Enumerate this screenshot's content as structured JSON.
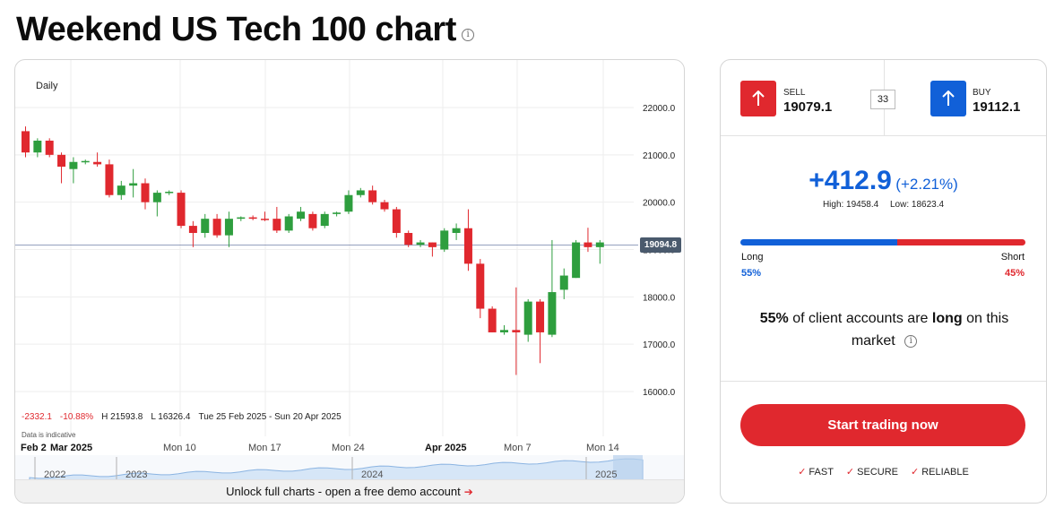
{
  "header": {
    "title": "Weekend US Tech 100 chart",
    "info_icon": "info-icon"
  },
  "chart": {
    "periodicity": "Daily",
    "current_price_tag": "19094.8",
    "stats": {
      "change": "-2332.1",
      "change_pct": "-10.88%",
      "high": "H 21593.8",
      "low": "L 16326.4",
      "range": "Tue 25 Feb 2025 - Sun 20 Apr 2025"
    },
    "indicative_note": "Data is indicative",
    "unlock_text": "Unlock full charts - open a free demo account",
    "unlock_arrow_icon": "arrow-right-icon",
    "navigator_years": [
      "2022",
      "2023",
      "2024",
      "2025"
    ]
  },
  "chart_data": {
    "type": "candlestick",
    "ylim": [
      15800,
      22800
    ],
    "y_ticks": [
      "22000.0",
      "21000.0",
      "20000.0",
      "19000.0",
      "18000.0",
      "17000.0",
      "16000.0"
    ],
    "x_ticks": [
      "Feb 2",
      "Mar 2025",
      "Mon 10",
      "Mon 17",
      "Mon 24",
      "Apr 2025",
      "Mon 7",
      "Mon 14"
    ],
    "current_price": 19094.8,
    "candles": [
      {
        "o": 21500,
        "h": 21600,
        "l": 20950,
        "c": 21050
      },
      {
        "o": 21050,
        "h": 21350,
        "l": 20950,
        "c": 21300
      },
      {
        "o": 21300,
        "h": 21350,
        "l": 20950,
        "c": 21000
      },
      {
        "o": 21000,
        "h": 21050,
        "l": 20400,
        "c": 20750
      },
      {
        "o": 20700,
        "h": 20950,
        "l": 20400,
        "c": 20850
      },
      {
        "o": 20850,
        "h": 20900,
        "l": 20800,
        "c": 20870
      },
      {
        "o": 20850,
        "h": 21050,
        "l": 20750,
        "c": 20800
      },
      {
        "o": 20800,
        "h": 20900,
        "l": 20100,
        "c": 20150
      },
      {
        "o": 20150,
        "h": 20450,
        "l": 20050,
        "c": 20350
      },
      {
        "o": 20350,
        "h": 20700,
        "l": 20100,
        "c": 20400
      },
      {
        "o": 20400,
        "h": 20500,
        "l": 19850,
        "c": 20000
      },
      {
        "o": 20000,
        "h": 20250,
        "l": 19700,
        "c": 20200
      },
      {
        "o": 20200,
        "h": 20250,
        "l": 20150,
        "c": 20220
      },
      {
        "o": 20200,
        "h": 20250,
        "l": 19450,
        "c": 19500
      },
      {
        "o": 19500,
        "h": 19600,
        "l": 19050,
        "c": 19350
      },
      {
        "o": 19350,
        "h": 19750,
        "l": 19250,
        "c": 19650
      },
      {
        "o": 19650,
        "h": 19750,
        "l": 19250,
        "c": 19300
      },
      {
        "o": 19300,
        "h": 19800,
        "l": 19050,
        "c": 19650
      },
      {
        "o": 19650,
        "h": 19700,
        "l": 19600,
        "c": 19680
      },
      {
        "o": 19680,
        "h": 19720,
        "l": 19620,
        "c": 19650
      },
      {
        "o": 19650,
        "h": 19800,
        "l": 19600,
        "c": 19630
      },
      {
        "o": 19650,
        "h": 19900,
        "l": 19350,
        "c": 19400
      },
      {
        "o": 19400,
        "h": 19750,
        "l": 19350,
        "c": 19700
      },
      {
        "o": 19650,
        "h": 19900,
        "l": 19600,
        "c": 19800
      },
      {
        "o": 19750,
        "h": 19800,
        "l": 19400,
        "c": 19450
      },
      {
        "o": 19500,
        "h": 19800,
        "l": 19450,
        "c": 19750
      },
      {
        "o": 19750,
        "h": 19800,
        "l": 19700,
        "c": 19780
      },
      {
        "o": 19800,
        "h": 20250,
        "l": 19750,
        "c": 20150
      },
      {
        "o": 20150,
        "h": 20300,
        "l": 20100,
        "c": 20250
      },
      {
        "o": 20250,
        "h": 20350,
        "l": 19950,
        "c": 20000
      },
      {
        "o": 20000,
        "h": 20050,
        "l": 19800,
        "c": 19850
      },
      {
        "o": 19850,
        "h": 19900,
        "l": 19250,
        "c": 19350
      },
      {
        "o": 19350,
        "h": 19400,
        "l": 19050,
        "c": 19100
      },
      {
        "o": 19100,
        "h": 19200,
        "l": 19050,
        "c": 19150
      },
      {
        "o": 19150,
        "h": 19150,
        "l": 18850,
        "c": 19050
      },
      {
        "o": 19000,
        "h": 19450,
        "l": 18950,
        "c": 19400
      },
      {
        "o": 19350,
        "h": 19550,
        "l": 19200,
        "c": 19450
      },
      {
        "o": 19450,
        "h": 19850,
        "l": 18550,
        "c": 18700
      },
      {
        "o": 18700,
        "h": 18800,
        "l": 17550,
        "c": 17750
      },
      {
        "o": 17750,
        "h": 17800,
        "l": 17250,
        "c": 17250
      },
      {
        "o": 17250,
        "h": 17400,
        "l": 17200,
        "c": 17300
      },
      {
        "o": 17300,
        "h": 18200,
        "l": 16350,
        "c": 17250
      },
      {
        "o": 17200,
        "h": 17950,
        "l": 17050,
        "c": 17900
      },
      {
        "o": 17900,
        "h": 17950,
        "l": 16600,
        "c": 17250
      },
      {
        "o": 17200,
        "h": 19200,
        "l": 17150,
        "c": 18100
      },
      {
        "o": 18150,
        "h": 18600,
        "l": 17950,
        "c": 18450
      },
      {
        "o": 18400,
        "h": 19200,
        "l": 18400,
        "c": 19150
      },
      {
        "o": 19150,
        "h": 19460,
        "l": 18950,
        "c": 19050
      },
      {
        "o": 19050,
        "h": 19200,
        "l": 18700,
        "c": 19150
      }
    ]
  },
  "quote": {
    "sell_label": "SELL",
    "sell_price": "19079.1",
    "buy_label": "BUY",
    "buy_price": "19112.1",
    "spread": "33"
  },
  "change": {
    "abs": "+412.9",
    "pct": "(+2.21%)",
    "high": "High: 19458.4",
    "low": "Low: 18623.4"
  },
  "sentiment": {
    "long_label": "Long",
    "short_label": "Short",
    "long_pct": "55%",
    "short_pct": "45%",
    "long_fraction": 0.55,
    "sentence_pct": "55%",
    "sentence_mid": " of client accounts are ",
    "sentence_bold": "long",
    "sentence_end": " on this market",
    "long_color": "#1160d8",
    "short_color": "#e0282e"
  },
  "cta": {
    "label": "Start trading now"
  },
  "features": [
    "FAST",
    "SECURE",
    "RELIABLE"
  ]
}
